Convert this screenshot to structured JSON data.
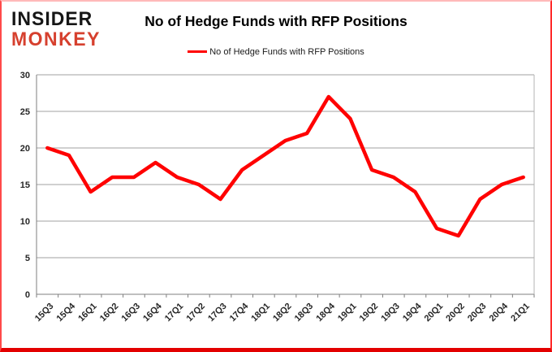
{
  "logo": {
    "line1": "INSIDER",
    "line2": "MONKEY",
    "color_line1": "#161616",
    "color_line2": "#d6402e"
  },
  "header": {
    "title": "No of Hedge Funds with RFP Positions"
  },
  "frame": {
    "border_color": "#ff2a2a",
    "bottom_bar_color": "#e30000"
  },
  "chart_data": {
    "type": "line",
    "title": "No of Hedge Funds with RFP Positions",
    "legend_label": "No of Hedge Funds with RFP Positions",
    "legend_position": "top",
    "grid": true,
    "categories": [
      "15Q3",
      "15Q4",
      "16Q1",
      "16Q2",
      "16Q3",
      "16Q4",
      "17Q1",
      "17Q2",
      "17Q3",
      "17Q4",
      "18Q1",
      "18Q2",
      "18Q3",
      "18Q4",
      "19Q1",
      "19Q2",
      "19Q3",
      "19Q4",
      "20Q1",
      "20Q2",
      "20Q3",
      "20Q4",
      "21Q1"
    ],
    "values": [
      20,
      19,
      14,
      16,
      16,
      18,
      16,
      15,
      13,
      17,
      19,
      21,
      22,
      27,
      24,
      17,
      16,
      14,
      9,
      8,
      13,
      15,
      16
    ],
    "ylim": [
      0,
      30
    ],
    "ytick_step": 5,
    "xlabel": "",
    "ylabel": "",
    "line_color": "#ff0000",
    "axis_color": "#7f7f7f",
    "grid_color": "#a0a0a0",
    "tick_label_color": "#262626"
  }
}
